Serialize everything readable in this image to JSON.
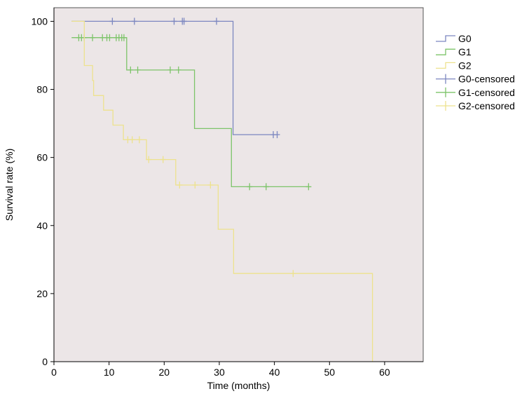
{
  "chart_data": {
    "type": "line",
    "title": "",
    "xlabel": "Time (months)",
    "ylabel": "Survival rate (%)",
    "xlim": [
      0,
      67
    ],
    "ylim": [
      0,
      104
    ],
    "xticks": [
      0,
      10,
      20,
      30,
      40,
      50,
      60
    ],
    "yticks": [
      0,
      20,
      40,
      60,
      80,
      100
    ],
    "grid": false,
    "background": "#ECE6E7",
    "legend_position": "right",
    "series": [
      {
        "name": "G0",
        "color": "#7C87C0",
        "steps": [
          [
            3.2,
            100
          ],
          [
            32.5,
            100
          ],
          [
            32.5,
            66.7
          ],
          [
            40.5,
            66.7
          ]
        ],
        "censored": [
          [
            10.6,
            100
          ],
          [
            14.6,
            100
          ],
          [
            21.8,
            100
          ],
          [
            23.3,
            100
          ],
          [
            23.6,
            100
          ],
          [
            29.5,
            100
          ],
          [
            39.8,
            66.7
          ],
          [
            40.5,
            66.7
          ]
        ]
      },
      {
        "name": "G1",
        "color": "#7DC46A",
        "steps": [
          [
            3.2,
            95.2
          ],
          [
            13.2,
            95.2
          ],
          [
            13.2,
            85.7
          ],
          [
            25.5,
            85.7
          ],
          [
            25.5,
            68.5
          ],
          [
            32.2,
            68.5
          ],
          [
            32.2,
            51.4
          ],
          [
            46.2,
            51.4
          ]
        ],
        "censored": [
          [
            4.5,
            95.2
          ],
          [
            5.0,
            95.2
          ],
          [
            5.5,
            95.2
          ],
          [
            7.0,
            95.2
          ],
          [
            8.8,
            95.2
          ],
          [
            9.6,
            95.2
          ],
          [
            10.1,
            95.2
          ],
          [
            11.3,
            95.2
          ],
          [
            11.8,
            95.2
          ],
          [
            12.3,
            95.2
          ],
          [
            12.7,
            95.2
          ],
          [
            13.9,
            85.7
          ],
          [
            15.2,
            85.7
          ],
          [
            21.1,
            85.7
          ],
          [
            22.6,
            85.7
          ],
          [
            35.5,
            51.4
          ],
          [
            38.5,
            51.4
          ],
          [
            46.2,
            51.4
          ]
        ]
      },
      {
        "name": "G2",
        "color": "#EDE28E",
        "steps": [
          [
            3.2,
            100
          ],
          [
            5.5,
            100
          ],
          [
            5.5,
            87
          ],
          [
            7.0,
            87
          ],
          [
            7.0,
            82.6
          ],
          [
            7.2,
            82.6
          ],
          [
            7.2,
            78.2
          ],
          [
            9.0,
            78.2
          ],
          [
            9.0,
            73.9
          ],
          [
            10.7,
            73.9
          ],
          [
            10.7,
            69.5
          ],
          [
            12.6,
            69.5
          ],
          [
            12.6,
            65.2
          ],
          [
            16.8,
            65.2
          ],
          [
            16.8,
            59.4
          ],
          [
            22.1,
            59.4
          ],
          [
            22.1,
            51.9
          ],
          [
            29.8,
            51.9
          ],
          [
            29.8,
            38.9
          ],
          [
            32.6,
            38.9
          ],
          [
            32.6,
            25.9
          ],
          [
            57.8,
            25.9
          ],
          [
            57.8,
            0
          ]
        ],
        "censored": [
          [
            13.4,
            65.2
          ],
          [
            14.2,
            65.2
          ],
          [
            15.5,
            65.2
          ],
          [
            17.2,
            59.4
          ],
          [
            19.8,
            59.4
          ],
          [
            22.8,
            51.9
          ],
          [
            25.6,
            51.9
          ],
          [
            28.4,
            51.9
          ],
          [
            43.4,
            25.9
          ]
        ]
      }
    ],
    "legend": [
      {
        "label": "G0",
        "series": 0,
        "kind": "step"
      },
      {
        "label": "G1",
        "series": 1,
        "kind": "step"
      },
      {
        "label": "G2",
        "series": 2,
        "kind": "step"
      },
      {
        "label": "G0-censored",
        "series": 0,
        "kind": "censor"
      },
      {
        "label": "G1-censored",
        "series": 1,
        "kind": "censor"
      },
      {
        "label": "G2-censored",
        "series": 2,
        "kind": "censor"
      }
    ]
  }
}
